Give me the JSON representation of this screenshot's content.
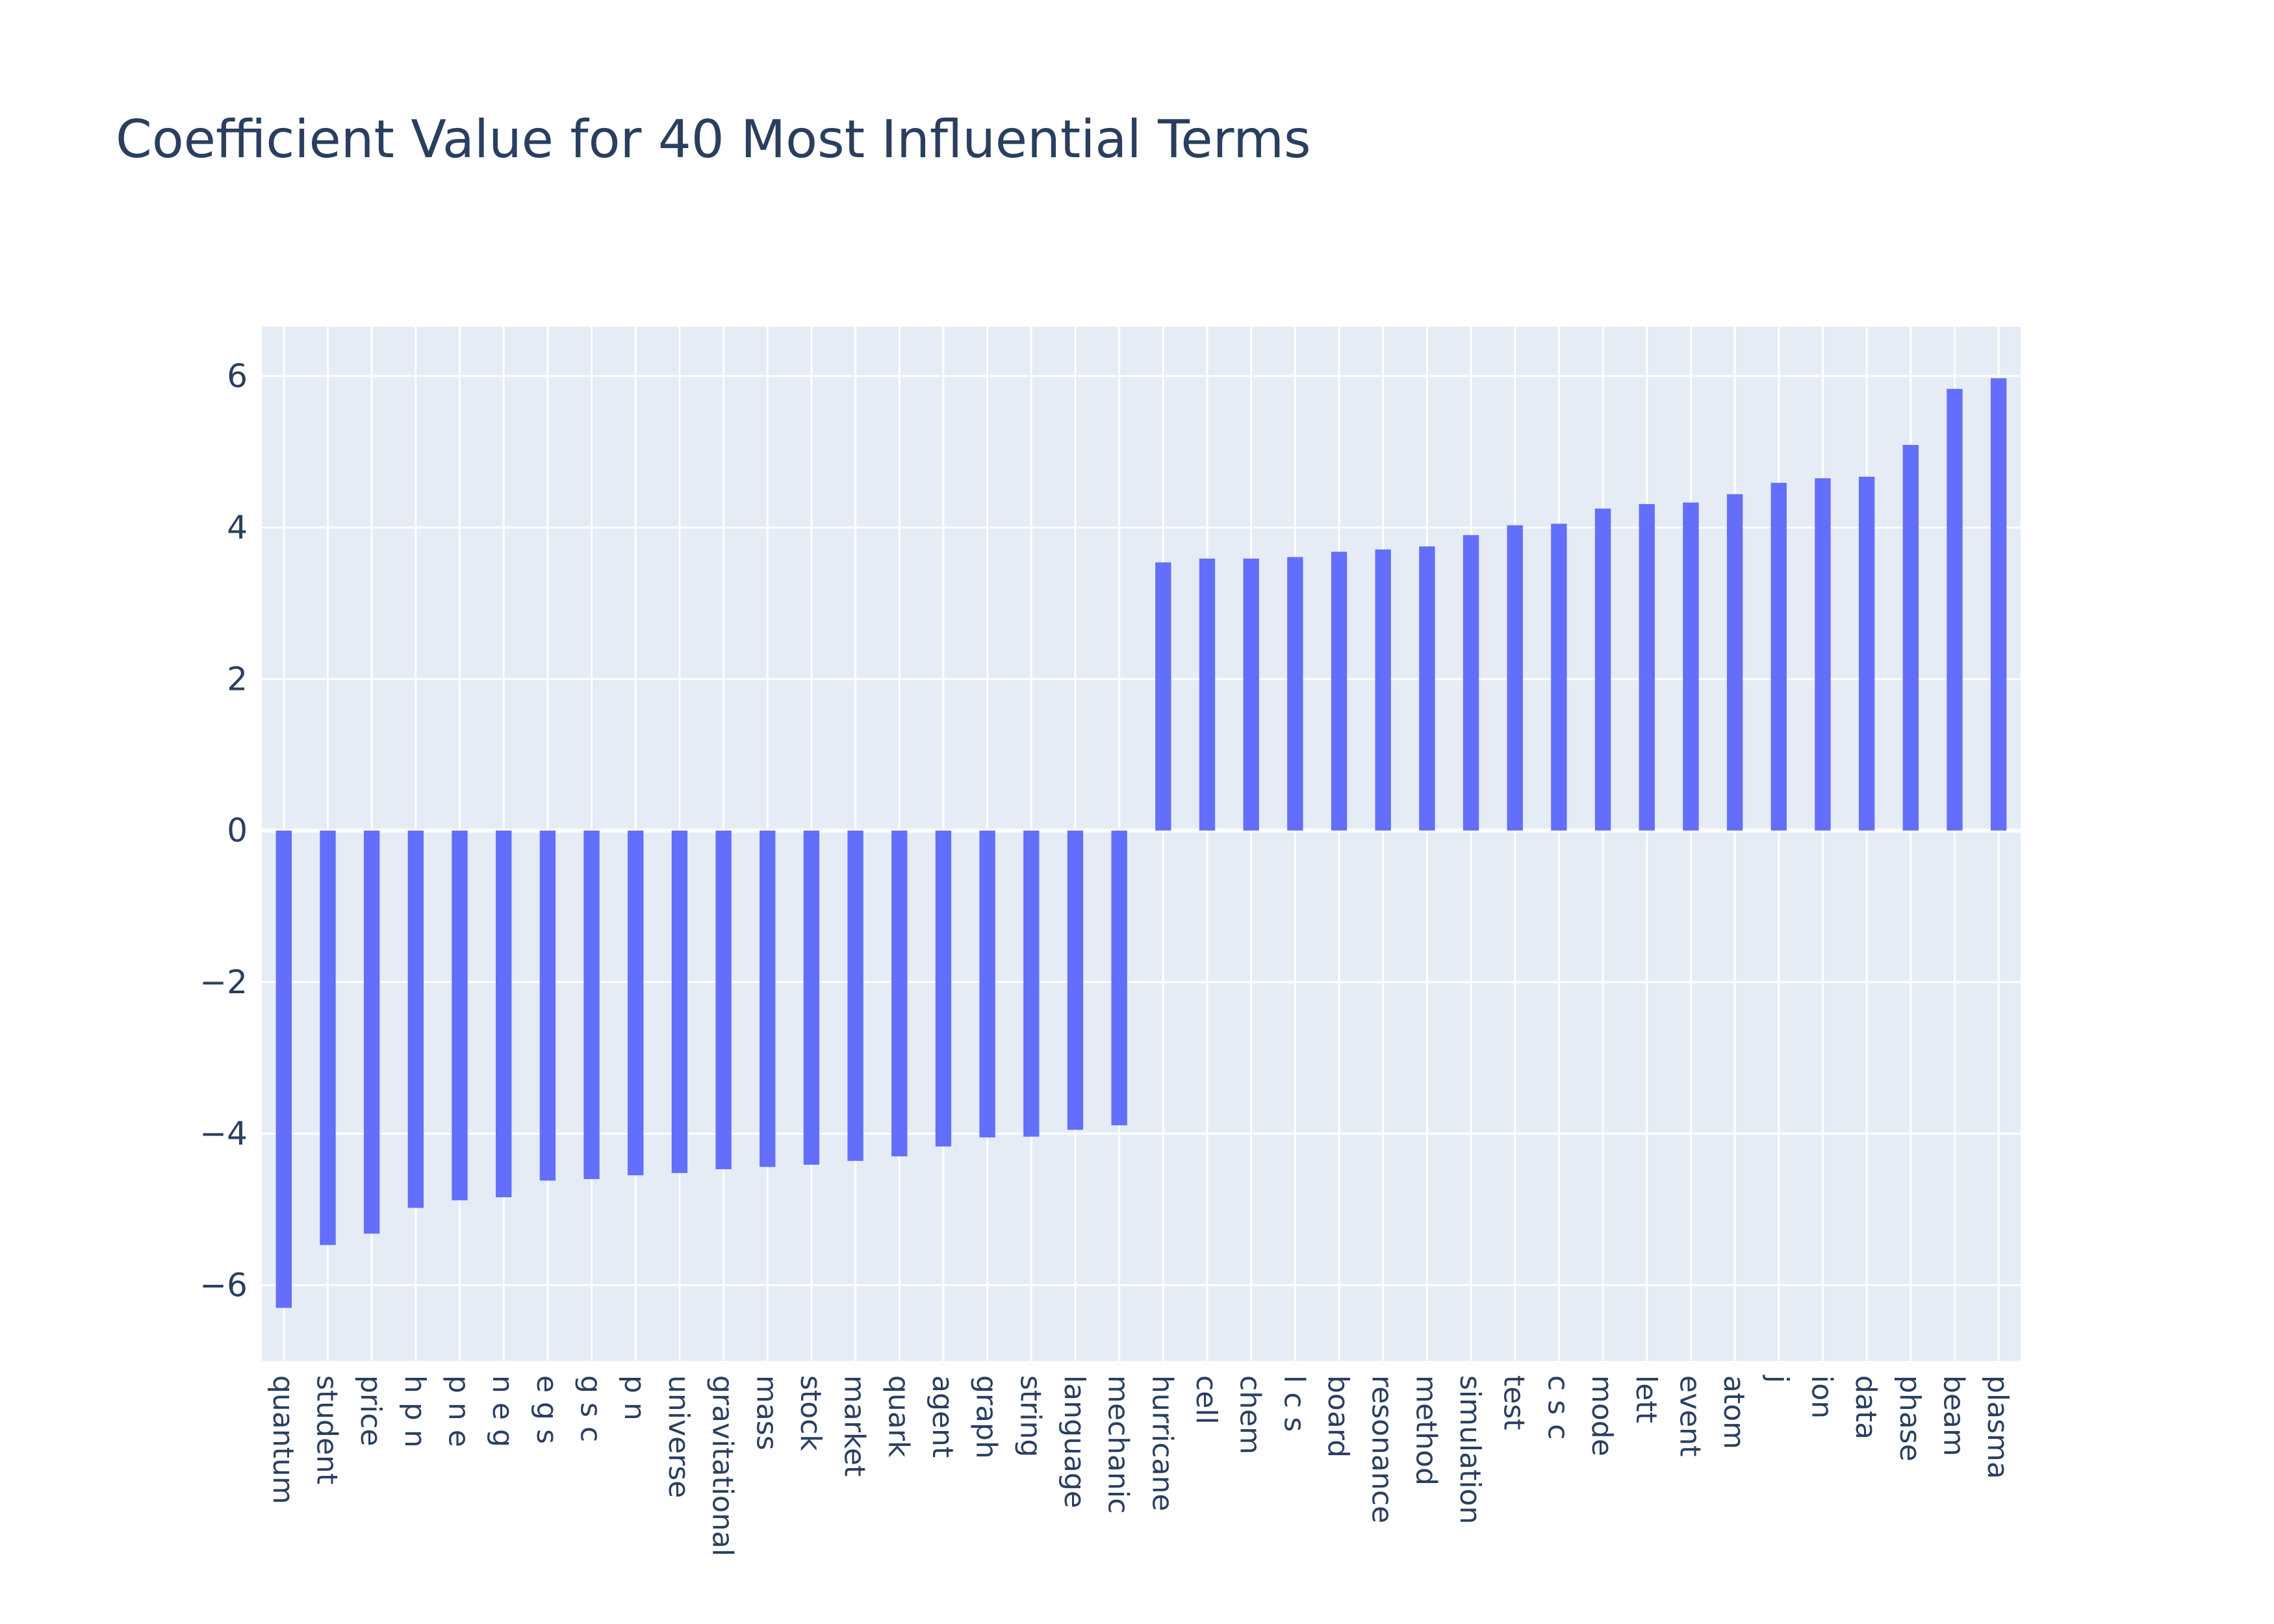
{
  "chart_data": {
    "type": "bar",
    "title": "Coefficient Value for 40 Most Influential Terms",
    "xlabel": "",
    "ylabel": "",
    "ylim": [
      -7,
      6.65
    ],
    "yticks": [
      -6,
      -4,
      -2,
      0,
      2,
      4,
      6
    ],
    "ytick_labels": [
      "−6",
      "−4",
      "−2",
      "0",
      "2",
      "4",
      "6"
    ],
    "grid": true,
    "bar_color": "#636efa",
    "plot_bg": "#e5ecf6",
    "categories": [
      "quantum",
      "student",
      "price",
      "h p n",
      "p n e",
      "n e g",
      "e g s",
      "g s c",
      "p n",
      "universe",
      "gravitational",
      "mass",
      "stock",
      "market",
      "quark",
      "agent",
      "graph",
      "string",
      "language",
      "mechanic",
      "hurricane",
      "cell",
      "chem",
      "l c s",
      "board",
      "resonance",
      "method",
      "simulation",
      "test",
      "c s c",
      "mode",
      "lett",
      "event",
      "atom",
      "j",
      "ion",
      "data",
      "phase",
      "beam",
      "plasma"
    ],
    "values": [
      -6.3,
      -5.47,
      -5.32,
      -4.98,
      -4.88,
      -4.84,
      -4.62,
      -4.6,
      -4.55,
      -4.52,
      -4.47,
      -4.44,
      -4.41,
      -4.36,
      -4.3,
      -4.17,
      -4.05,
      -4.04,
      -3.95,
      -3.89,
      3.54,
      3.59,
      3.59,
      3.61,
      3.68,
      3.71,
      3.75,
      3.9,
      4.03,
      4.05,
      4.25,
      4.31,
      4.33,
      4.44,
      4.59,
      4.65,
      4.67,
      5.09,
      5.83,
      5.97
    ]
  }
}
